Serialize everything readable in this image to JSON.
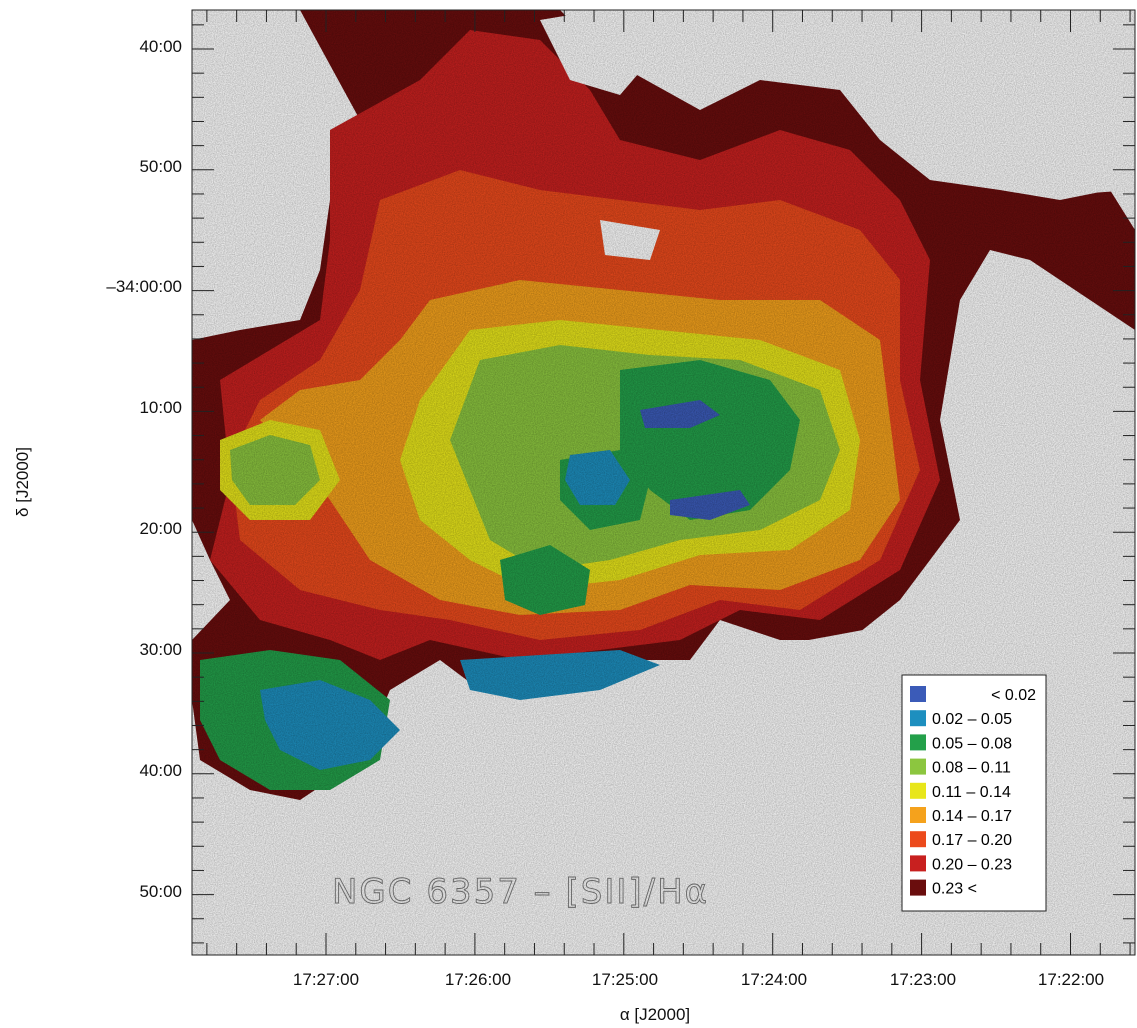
{
  "chart_data": {
    "type": "heatmap",
    "title": "NGC 6357 – [SII]/Hα",
    "xlabel": "α [J2000]",
    "ylabel": "δ [J2000]",
    "x_ticks": [
      "17:27:00",
      "17:26:00",
      "17:25:00",
      "17:24:00",
      "17:23:00",
      "17:22:00"
    ],
    "y_ticks": [
      "40:00",
      "50:00",
      "–34:00:00",
      "10:00",
      "20:00",
      "30:00",
      "40:00",
      "50:00"
    ],
    "legend": [
      {
        "label": "< 0.02",
        "color": "#3b5bb8"
      },
      {
        "label": "0.02 – 0.05",
        "color": "#1d8fbf"
      },
      {
        "label": "0.05 – 0.08",
        "color": "#23a04a"
      },
      {
        "label": "0.08 – 0.11",
        "color": "#8cc63f"
      },
      {
        "label": "0.11 – 0.14",
        "color": "#e8e61a"
      },
      {
        "label": "0.14 – 0.17",
        "color": "#f5a21c"
      },
      {
        "label": "0.17 – 0.20",
        "color": "#ec4a1c"
      },
      {
        "label": "0.20 – 0.23",
        "color": "#c8201f"
      },
      {
        "label": "0.23 <",
        "color": "#6a0d0d"
      }
    ],
    "legend_position": "bottom-right",
    "grid": false
  }
}
